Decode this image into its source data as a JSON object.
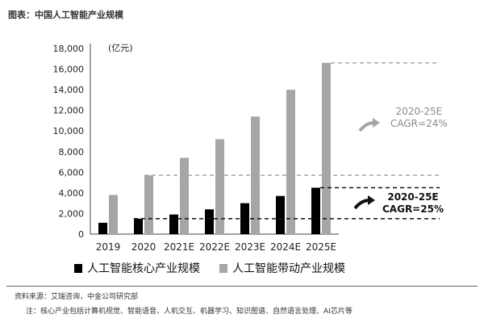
{
  "figure_title": "图表：中国人工智能产业规模",
  "chart_data": {
    "type": "bar",
    "unit_label": "(亿元)",
    "categories": [
      "2019",
      "2020",
      "2021E",
      "2022E",
      "2023E",
      "2024E",
      "2025E"
    ],
    "series": [
      {
        "name": "人工智能核心产业规模",
        "color": "#000000",
        "values": [
          1100,
          1500,
          1900,
          2400,
          3000,
          3700,
          4500
        ]
      },
      {
        "name": "人工智能带动产业规模",
        "color": "#a6a6a6",
        "values": [
          3800,
          5700,
          7400,
          9200,
          11400,
          14000,
          16600
        ]
      }
    ],
    "yticks": [
      "0",
      "2,000",
      "4,000",
      "6,000",
      "8,000",
      "10,000",
      "12,000",
      "14,000",
      "16,000",
      "18,000"
    ],
    "ylim": [
      0,
      18000
    ],
    "annotations": [
      {
        "series": 1,
        "text_lines": [
          "2020-25E",
          "CAGR=24%"
        ],
        "color": "#8c8c8c"
      },
      {
        "series": 0,
        "text_lines": [
          "2020-25E",
          "CAGR=25%"
        ],
        "color": "#111111"
      }
    ],
    "legend_position": "bottom"
  },
  "source": "资料来源：艾瑞咨询，中金公司研究部",
  "note": "注：核心产业包括计算机视觉、智能语音、人机交互、机器学习、知识图谱、自然语言处理、AI芯片等",
  "colors": {
    "core": "#000000",
    "driven": "#a6a6a6"
  }
}
